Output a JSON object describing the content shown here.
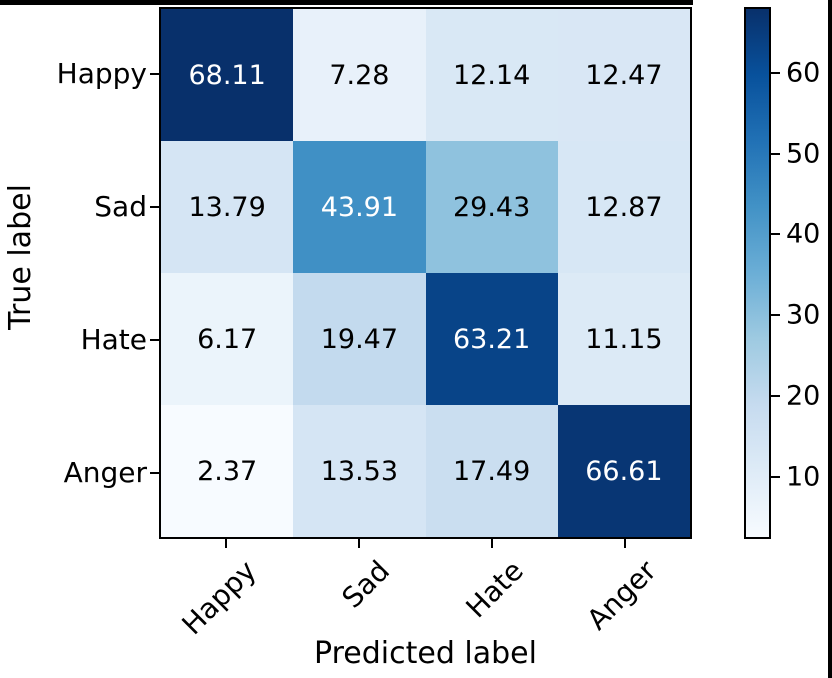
{
  "chart_data": {
    "type": "heatmap",
    "title": "",
    "xlabel": "Predicted label",
    "ylabel": "True label",
    "x_categories": [
      "Happy",
      "Sad",
      "Hate",
      "Anger"
    ],
    "y_categories": [
      "Happy",
      "Sad",
      "Hate",
      "Anger"
    ],
    "rows": [
      [
        68.11,
        7.28,
        12.14,
        12.47
      ],
      [
        13.79,
        43.91,
        29.43,
        12.87
      ],
      [
        6.17,
        19.47,
        63.21,
        11.15
      ],
      [
        2.37,
        13.53,
        17.49,
        66.61
      ]
    ],
    "value_format_decimals": 2,
    "vmin": 2.37,
    "vmax": 68.11,
    "colormap": "Blues",
    "colorbar_ticks": [
      10,
      20,
      30,
      40,
      50,
      60
    ],
    "legend_position": "right-colorbar",
    "grid": false
  },
  "colors": {
    "cmap_stops": [
      "#f7fbff",
      "#deebf7",
      "#c6dbef",
      "#9ecae1",
      "#6baed6",
      "#4292c6",
      "#2171b5",
      "#08519c",
      "#08306b"
    ],
    "cell_text_dark": "#000000",
    "cell_text_light": "#ffffff",
    "frame": "#000000",
    "background": "#ffffff"
  }
}
